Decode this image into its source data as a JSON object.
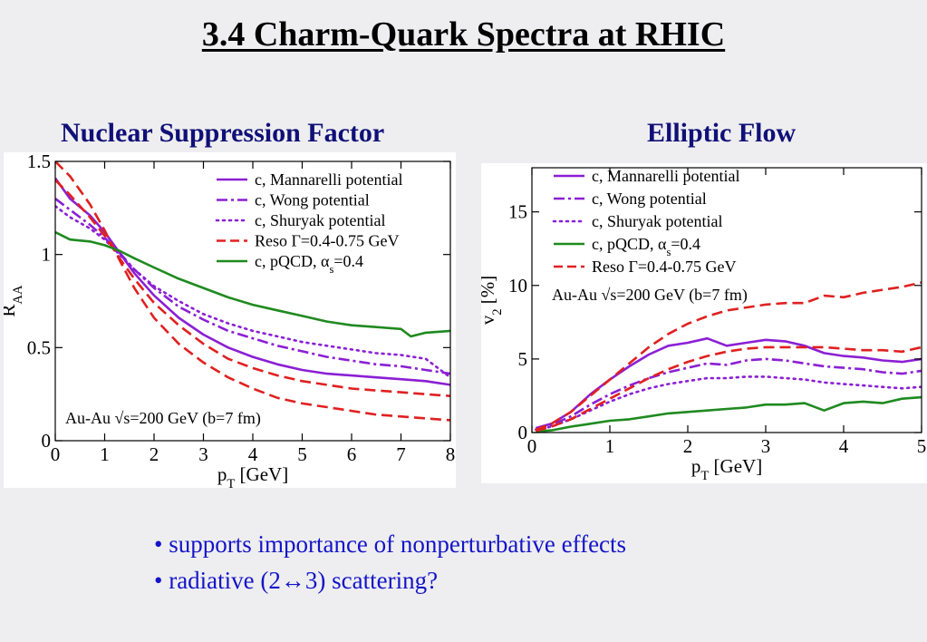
{
  "slide": {
    "title": "3.4 Charm-Quark Spectra at RHIC",
    "left_heading": "Nuclear Suppression Factor",
    "right_heading": "Elliptic Flow",
    "bullets": [
      "supports importance of nonperturbative effects",
      "radiative (2↔3) scattering?"
    ]
  },
  "chart_data": [
    {
      "type": "line",
      "title": "Nuclear Suppression Factor",
      "xlabel": "p_T [GeV]",
      "ylabel": "R_AA",
      "xlim": [
        0,
        8
      ],
      "ylim": [
        0,
        1.5
      ],
      "xticks": [
        "0",
        "1",
        "2",
        "3",
        "4",
        "5",
        "6",
        "7",
        "8"
      ],
      "yticks": [
        "0",
        "0.5",
        "1",
        "1.5"
      ],
      "legend_position": "top-right",
      "grid": false,
      "annotation": "Au-Au √s=200 GeV (b=7 fm)",
      "series": [
        {
          "name": "c, Mannarelli potential",
          "color": "#8b1fd4",
          "dash": "solid",
          "x": [
            0,
            0.3,
            0.7,
            1,
            1.3,
            1.6,
            2,
            2.5,
            3,
            3.5,
            4,
            4.5,
            5,
            5.5,
            6,
            6.5,
            7,
            7.5,
            8
          ],
          "y": [
            1.41,
            1.3,
            1.21,
            1.12,
            1.01,
            0.9,
            0.78,
            0.66,
            0.57,
            0.5,
            0.45,
            0.41,
            0.38,
            0.36,
            0.35,
            0.34,
            0.33,
            0.32,
            0.3
          ]
        },
        {
          "name": "c, Wong potential",
          "color": "#8b1fd4",
          "dash": "dashdot",
          "x": [
            0,
            0.3,
            0.7,
            1,
            1.3,
            1.6,
            2,
            2.5,
            3,
            3.5,
            4,
            4.5,
            5,
            5.5,
            6,
            6.5,
            7,
            7.5,
            8
          ],
          "y": [
            1.3,
            1.24,
            1.16,
            1.09,
            1.01,
            0.92,
            0.82,
            0.72,
            0.65,
            0.59,
            0.55,
            0.51,
            0.48,
            0.45,
            0.43,
            0.41,
            0.4,
            0.38,
            0.36
          ]
        },
        {
          "name": "c, Shuryak potential",
          "color": "#8b1fd4",
          "dash": "dotted",
          "x": [
            0,
            0.3,
            0.7,
            1,
            1.3,
            1.6,
            2,
            2.5,
            3,
            3.5,
            4,
            4.5,
            5,
            5.5,
            6,
            6.5,
            7,
            7.5,
            8
          ],
          "y": [
            1.26,
            1.2,
            1.14,
            1.08,
            1.0,
            0.92,
            0.83,
            0.75,
            0.68,
            0.63,
            0.59,
            0.56,
            0.53,
            0.51,
            0.49,
            0.47,
            0.46,
            0.44,
            0.34
          ]
        },
        {
          "name": "Reso Γ=0.4-0.75 GeV",
          "color": "#e02020",
          "dash": "dashed",
          "x": [
            0,
            0.3,
            0.7,
            1,
            1.3,
            1.6,
            2,
            2.5,
            3,
            3.5,
            4,
            4.5,
            5,
            5.5,
            6,
            6.5,
            7,
            7.5,
            8
          ],
          "y": [
            1.4,
            1.32,
            1.2,
            1.1,
            0.98,
            0.87,
            0.74,
            0.62,
            0.52,
            0.44,
            0.39,
            0.35,
            0.32,
            0.3,
            0.28,
            0.27,
            0.26,
            0.25,
            0.24
          ]
        },
        {
          "name": "Reso Γ=0.4-0.75 GeV",
          "color": "#e02020",
          "dash": "dashed",
          "x": [
            0,
            0.3,
            0.7,
            1,
            1.3,
            1.6,
            2,
            2.5,
            3,
            3.5,
            4,
            4.5,
            5,
            5.5,
            6,
            6.5,
            7,
            7.5,
            8
          ],
          "y": [
            1.5,
            1.42,
            1.27,
            1.13,
            0.97,
            0.82,
            0.66,
            0.52,
            0.42,
            0.34,
            0.28,
            0.23,
            0.2,
            0.18,
            0.16,
            0.14,
            0.13,
            0.12,
            0.11
          ]
        },
        {
          "name": "c, pQCD, α_s=0.4",
          "color": "#1f8a1f",
          "dash": "solid",
          "x": [
            0,
            0.3,
            0.7,
            1,
            1.3,
            1.6,
            2,
            2.5,
            3,
            3.5,
            4,
            4.5,
            5,
            5.5,
            6,
            6.5,
            7,
            7.2,
            7.5,
            8
          ],
          "y": [
            1.12,
            1.08,
            1.07,
            1.05,
            1.02,
            0.98,
            0.93,
            0.87,
            0.82,
            0.77,
            0.73,
            0.7,
            0.67,
            0.64,
            0.62,
            0.61,
            0.6,
            0.56,
            0.58,
            0.59
          ]
        }
      ]
    },
    {
      "type": "line",
      "title": "Elliptic Flow",
      "xlabel": "p_T [GeV]",
      "ylabel": "v_2 [%]",
      "xlim": [
        0,
        5
      ],
      "ylim": [
        0,
        18
      ],
      "xticks": [
        "0",
        "1",
        "2",
        "3",
        "4",
        "5"
      ],
      "yticks": [
        "0",
        "5",
        "10",
        "15"
      ],
      "legend_position": "top-left",
      "grid": false,
      "annotation": "Au-Au √s=200 GeV (b=7 fm)",
      "series": [
        {
          "name": "c, Mannarelli potential",
          "color": "#8b1fd4",
          "dash": "solid",
          "x": [
            0.05,
            0.25,
            0.5,
            0.75,
            1,
            1.25,
            1.5,
            1.75,
            2,
            2.25,
            2.5,
            2.75,
            3,
            3.25,
            3.5,
            3.75,
            4,
            4.25,
            4.5,
            4.75,
            5
          ],
          "y": [
            0.3,
            0.6,
            1.4,
            2.6,
            3.6,
            4.5,
            5.3,
            5.9,
            6.1,
            6.4,
            5.9,
            6.1,
            6.3,
            6.2,
            5.9,
            5.4,
            5.2,
            5.1,
            4.9,
            4.8,
            5.0
          ]
        },
        {
          "name": "c, Wong potential",
          "color": "#8b1fd4",
          "dash": "dashdot",
          "x": [
            0.05,
            0.25,
            0.5,
            0.75,
            1,
            1.25,
            1.5,
            1.75,
            2,
            2.25,
            2.5,
            2.75,
            3,
            3.25,
            3.5,
            3.75,
            4,
            4.25,
            4.5,
            4.75,
            5
          ],
          "y": [
            0.2,
            0.5,
            1.1,
            1.9,
            2.6,
            3.2,
            3.7,
            4.1,
            4.4,
            4.7,
            4.6,
            4.9,
            5.0,
            4.9,
            4.7,
            4.5,
            4.4,
            4.3,
            4.1,
            4.0,
            4.2
          ]
        },
        {
          "name": "c, Shuryak potential",
          "color": "#8b1fd4",
          "dash": "dotted",
          "x": [
            0.05,
            0.25,
            0.5,
            0.75,
            1,
            1.25,
            1.5,
            1.75,
            2,
            2.25,
            2.5,
            2.75,
            3,
            3.25,
            3.5,
            3.75,
            4,
            4.25,
            4.5,
            4.75,
            5
          ],
          "y": [
            0.2,
            0.4,
            0.9,
            1.5,
            2.1,
            2.6,
            3.0,
            3.3,
            3.5,
            3.7,
            3.7,
            3.8,
            3.8,
            3.7,
            3.6,
            3.4,
            3.3,
            3.2,
            3.1,
            3.0,
            3.1
          ]
        },
        {
          "name": "c, pQCD, α_s=0.4",
          "color": "#1f8a1f",
          "dash": "solid",
          "x": [
            0.05,
            0.25,
            0.5,
            0.75,
            1,
            1.25,
            1.5,
            1.75,
            2,
            2.25,
            2.5,
            2.75,
            3,
            3.25,
            3.5,
            3.75,
            4,
            4.25,
            4.5,
            4.75,
            5
          ],
          "y": [
            0.05,
            0.15,
            0.4,
            0.6,
            0.8,
            0.9,
            1.1,
            1.3,
            1.4,
            1.5,
            1.6,
            1.7,
            1.9,
            1.9,
            2.0,
            1.5,
            2.0,
            2.1,
            2.0,
            2.3,
            2.4
          ]
        },
        {
          "name": "Reso Γ=0.4-0.75 GeV",
          "color": "#e02020",
          "dash": "dashed",
          "x": [
            0.05,
            0.25,
            0.5,
            0.75,
            1,
            1.25,
            1.5,
            1.75,
            2,
            2.25,
            2.5,
            2.75,
            3,
            3.25,
            3.5,
            3.75,
            4,
            4.25,
            4.5,
            4.75,
            5
          ],
          "y": [
            0.2,
            0.6,
            1.4,
            2.5,
            3.6,
            4.7,
            5.8,
            6.7,
            7.4,
            7.9,
            8.3,
            8.5,
            8.7,
            8.8,
            8.8,
            9.3,
            9.2,
            9.5,
            9.7,
            9.9,
            10.2
          ]
        },
        {
          "name": "Reso Γ=0.4-0.75 GeV",
          "color": "#e02020",
          "dash": "dashed",
          "x": [
            0.05,
            0.25,
            0.5,
            0.75,
            1,
            1.25,
            1.5,
            1.75,
            2,
            2.25,
            2.5,
            2.75,
            3,
            3.25,
            3.5,
            3.75,
            4,
            4.25,
            4.5,
            4.75,
            5
          ],
          "y": [
            0.1,
            0.4,
            0.9,
            1.6,
            2.3,
            3.0,
            3.7,
            4.3,
            4.8,
            5.2,
            5.5,
            5.7,
            5.8,
            5.8,
            5.8,
            5.8,
            5.7,
            5.6,
            5.6,
            5.5,
            5.8
          ]
        }
      ],
      "legend_entries": [
        {
          "label": "c, Mannarelli potential",
          "color": "#8b1fd4",
          "dash": "solid"
        },
        {
          "label": "c, Wong potential",
          "color": "#8b1fd4",
          "dash": "dashdot"
        },
        {
          "label": "c, Shuryak potential",
          "color": "#8b1fd4",
          "dash": "dotted"
        },
        {
          "label": "c, pQCD, α_s=0.4",
          "color": "#1f8a1f",
          "dash": "solid"
        },
        {
          "label": "Reso Γ=0.4-0.75 GeV",
          "color": "#e02020",
          "dash": "dashed"
        }
      ]
    }
  ],
  "legend_left": [
    {
      "label": "c, Mannarelli potential",
      "color": "#8b1fd4",
      "dash": "solid"
    },
    {
      "label": "c, Wong potential",
      "color": "#8b1fd4",
      "dash": "dashdot"
    },
    {
      "label": "c, Shuryak potential",
      "color": "#8b1fd4",
      "dash": "dotted"
    },
    {
      "label": "Reso Γ=0.4-0.75 GeV",
      "color": "#e02020",
      "dash": "dashed"
    },
    {
      "label": "c, pQCD, α_s=0.4",
      "color": "#1f8a1f",
      "dash": "solid"
    }
  ]
}
